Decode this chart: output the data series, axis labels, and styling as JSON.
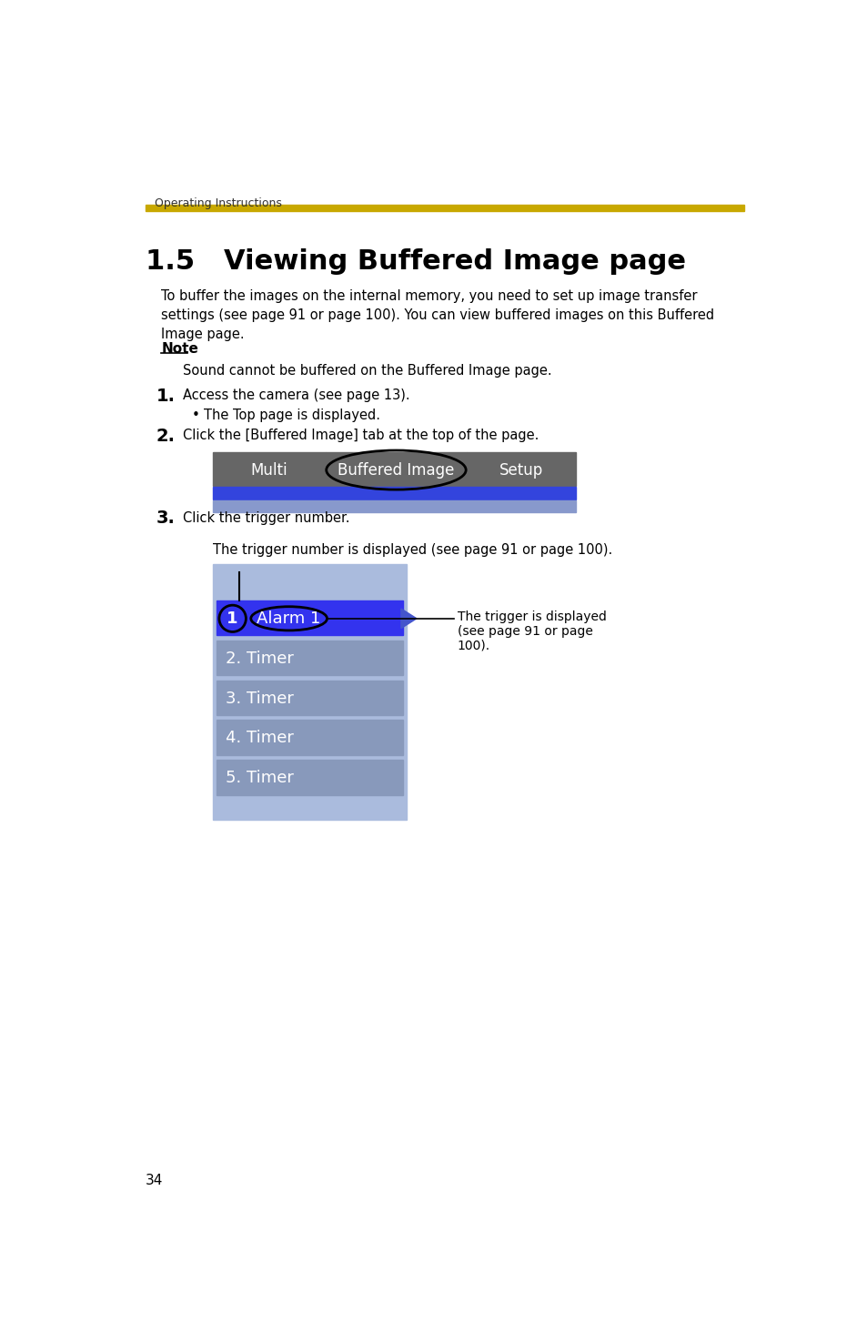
{
  "page_bg": "#ffffff",
  "header_text": "Operating Instructions",
  "header_line_color": "#c8a800",
  "title": "1.5   Viewing Buffered Image page",
  "body_text_1": "To buffer the images on the internal memory, you need to set up image transfer\nsettings (see page 91 or page 100). You can view buffered images on this Buffered\nImage page.",
  "note_label": "Note",
  "note_text": "Sound cannot be buffered on the Buffered Image page.",
  "step1_num": "1.",
  "step1_text": "Access the camera (see page 13).",
  "step1_bullet": "The Top page is displayed.",
  "step2_num": "2.",
  "step2_text": "Click the [Buffered Image] tab at the top of the page.",
  "tab_items": [
    "Multi",
    "Buffered Image",
    "Setup"
  ],
  "tab_bg": "#666666",
  "tab_bar_blue": "#3344dd",
  "tab_bar_light": "#8899cc",
  "step3_num": "3.",
  "step3_text": "Click the trigger number.",
  "trigger_desc": "The trigger number is displayed (see page 91 or page 100).",
  "list_bg": "#aabbdd",
  "list_selected_bg": "#3333ee",
  "list_items": [
    "1. Alarm 1",
    "2. Timer",
    "3. Timer",
    "4. Timer",
    "5. Timer"
  ],
  "list_item_bg": "#8899bb",
  "callout_text": "The trigger is displayed\n(see page 91 or page\n100).",
  "page_number": "34"
}
